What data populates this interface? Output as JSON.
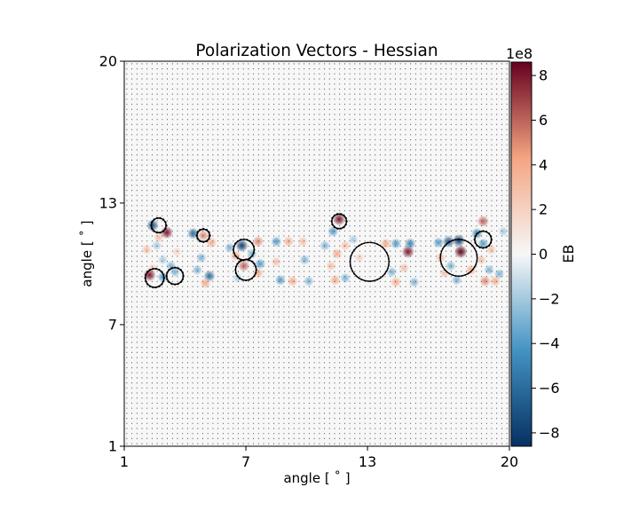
{
  "chart_data": {
    "type": "heatmap",
    "title": "Polarization Vectors - Hessian",
    "xlabel": "angle [$^\\circ$]",
    "ylabel": "angle [$^\\circ$]",
    "xlabel_display": "angle [ ˚ ]",
    "ylabel_display": "angle [ ˚ ]",
    "xlim": [
      1,
      20
    ],
    "ylim": [
      1,
      20
    ],
    "xticks": [
      1,
      7,
      13,
      20
    ],
    "yticks": [
      1,
      7,
      13,
      20
    ],
    "xtick_labels": [
      "1",
      "7",
      "13",
      "20"
    ],
    "ytick_labels": [
      "1",
      "7",
      "13",
      "20"
    ],
    "grid": false,
    "overlay": "polarization vector field (quiver), short sticks everywhere, long tangential sticks around letter edges",
    "image_content": "EB map shaped like the word 'Stanford' spanning x≈2–20, y≈9–12",
    "colormap": "RdBu_r",
    "colorbar": {
      "label": "EB",
      "range": [
        -8.6,
        8.6
      ],
      "ticks": [
        -8,
        -6,
        -4,
        -2,
        0,
        2,
        4,
        6,
        8
      ],
      "tick_labels": [
        "−8",
        "−6",
        "−4",
        "−2",
        "0",
        "2",
        "4",
        "6",
        "8"
      ],
      "offset_text": "1e8",
      "colors": {
        "min": "#053061",
        "neg_mid": "#4393c3",
        "zero": "#f7f7f7",
        "pos_mid": "#f4a582",
        "max": "#67001f"
      }
    },
    "blobs": [
      {
        "x": 2.4,
        "y": 11.9,
        "v": -7
      },
      {
        "x": 3.1,
        "y": 11.55,
        "v": 8
      },
      {
        "x": 2.7,
        "y": 11.3,
        "v": 3
      },
      {
        "x": 2.1,
        "y": 10.7,
        "v": 3
      },
      {
        "x": 2.6,
        "y": 10.9,
        "v": -2
      },
      {
        "x": 3.6,
        "y": 10.6,
        "v": 2
      },
      {
        "x": 2.9,
        "y": 10.2,
        "v": -2
      },
      {
        "x": 2.4,
        "y": 9.8,
        "v": 2
      },
      {
        "x": 3.3,
        "y": 9.9,
        "v": -3
      },
      {
        "x": 2.25,
        "y": 9.45,
        "v": 8
      },
      {
        "x": 2.9,
        "y": 9.35,
        "v": -4
      },
      {
        "x": 3.5,
        "y": 9.6,
        "v": -3
      },
      {
        "x": 4.4,
        "y": 11.5,
        "v": -6
      },
      {
        "x": 4.9,
        "y": 11.4,
        "v": 5
      },
      {
        "x": 5.3,
        "y": 11.05,
        "v": 4
      },
      {
        "x": 4.8,
        "y": 10.3,
        "v": -3
      },
      {
        "x": 4.6,
        "y": 9.7,
        "v": -3
      },
      {
        "x": 5.2,
        "y": 9.4,
        "v": -6
      },
      {
        "x": 5.0,
        "y": 9.05,
        "v": 4
      },
      {
        "x": 6.2,
        "y": 10.8,
        "v": -3
      },
      {
        "x": 6.8,
        "y": 10.9,
        "v": -8
      },
      {
        "x": 7.6,
        "y": 11.1,
        "v": 5
      },
      {
        "x": 6.5,
        "y": 10.4,
        "v": 4
      },
      {
        "x": 7.3,
        "y": 10.5,
        "v": -3
      },
      {
        "x": 7.7,
        "y": 10.0,
        "v": -4
      },
      {
        "x": 6.9,
        "y": 9.9,
        "v": 6
      },
      {
        "x": 7.6,
        "y": 9.55,
        "v": 4
      },
      {
        "x": 6.6,
        "y": 9.3,
        "v": -2
      },
      {
        "x": 8.5,
        "y": 11.1,
        "v": -4
      },
      {
        "x": 9.1,
        "y": 11.1,
        "v": 4
      },
      {
        "x": 9.8,
        "y": 11.1,
        "v": 3
      },
      {
        "x": 8.5,
        "y": 10.1,
        "v": 3
      },
      {
        "x": 9.9,
        "y": 10.2,
        "v": -3
      },
      {
        "x": 8.7,
        "y": 9.2,
        "v": -4
      },
      {
        "x": 9.3,
        "y": 9.15,
        "v": 4
      },
      {
        "x": 10.1,
        "y": 9.15,
        "v": -3
      },
      {
        "x": 10.9,
        "y": 10.9,
        "v": -3
      },
      {
        "x": 11.6,
        "y": 12.2,
        "v": 8
      },
      {
        "x": 11.3,
        "y": 11.6,
        "v": -4
      },
      {
        "x": 11.9,
        "y": 10.9,
        "v": 3
      },
      {
        "x": 11.5,
        "y": 10.5,
        "v": 4
      },
      {
        "x": 11.2,
        "y": 9.9,
        "v": 3
      },
      {
        "x": 11.9,
        "y": 9.3,
        "v": -3
      },
      {
        "x": 11.4,
        "y": 9.2,
        "v": 4
      },
      {
        "x": 12.3,
        "y": 11.2,
        "v": -2
      },
      {
        "x": 12.6,
        "y": 10.3,
        "v": 2
      },
      {
        "x": 13.9,
        "y": 11.0,
        "v": 4
      },
      {
        "x": 14.4,
        "y": 11.0,
        "v": -4
      },
      {
        "x": 15.0,
        "y": 10.6,
        "v": 8
      },
      {
        "x": 15.1,
        "y": 11.0,
        "v": -5
      },
      {
        "x": 14.8,
        "y": 9.8,
        "v": 3
      },
      {
        "x": 14.2,
        "y": 9.6,
        "v": -3
      },
      {
        "x": 14.4,
        "y": 9.1,
        "v": 4
      },
      {
        "x": 15.3,
        "y": 9.1,
        "v": -3
      },
      {
        "x": 16.5,
        "y": 11.05,
        "v": -4
      },
      {
        "x": 17.6,
        "y": 10.6,
        "v": 9
      },
      {
        "x": 17.0,
        "y": 11.1,
        "v": -7
      },
      {
        "x": 17.5,
        "y": 11.15,
        "v": -8
      },
      {
        "x": 16.6,
        "y": 10.3,
        "v": 3
      },
      {
        "x": 17.1,
        "y": 9.9,
        "v": -3
      },
      {
        "x": 16.8,
        "y": 9.55,
        "v": 3
      },
      {
        "x": 17.4,
        "y": 9.2,
        "v": -3
      },
      {
        "x": 18.1,
        "y": 9.7,
        "v": 4
      },
      {
        "x": 18.7,
        "y": 12.1,
        "v": 6
      },
      {
        "x": 18.4,
        "y": 11.5,
        "v": -5
      },
      {
        "x": 18.7,
        "y": 11.0,
        "v": -4
      },
      {
        "x": 19.1,
        "y": 10.7,
        "v": 3
      },
      {
        "x": 18.6,
        "y": 10.2,
        "v": 3
      },
      {
        "x": 19.0,
        "y": 9.7,
        "v": -3
      },
      {
        "x": 19.5,
        "y": 9.5,
        "v": -3
      },
      {
        "x": 18.8,
        "y": 9.15,
        "v": 5
      },
      {
        "x": 19.3,
        "y": 9.15,
        "v": 4
      },
      {
        "x": 19.7,
        "y": 11.6,
        "v": -2
      }
    ],
    "edge_rings": [
      {
        "x": 2.7,
        "y": 11.9,
        "r": 0.35
      },
      {
        "x": 2.5,
        "y": 9.3,
        "r": 0.45
      },
      {
        "x": 3.5,
        "y": 9.4,
        "r": 0.4
      },
      {
        "x": 4.9,
        "y": 11.4,
        "r": 0.3
      },
      {
        "x": 6.9,
        "y": 10.7,
        "r": 0.5
      },
      {
        "x": 7.0,
        "y": 9.7,
        "r": 0.5
      },
      {
        "x": 11.6,
        "y": 12.1,
        "r": 0.35
      },
      {
        "x": 13.1,
        "y": 10.1,
        "r": 0.95
      },
      {
        "x": 17.5,
        "y": 10.3,
        "r": 0.9
      },
      {
        "x": 18.7,
        "y": 11.2,
        "r": 0.4
      }
    ]
  }
}
